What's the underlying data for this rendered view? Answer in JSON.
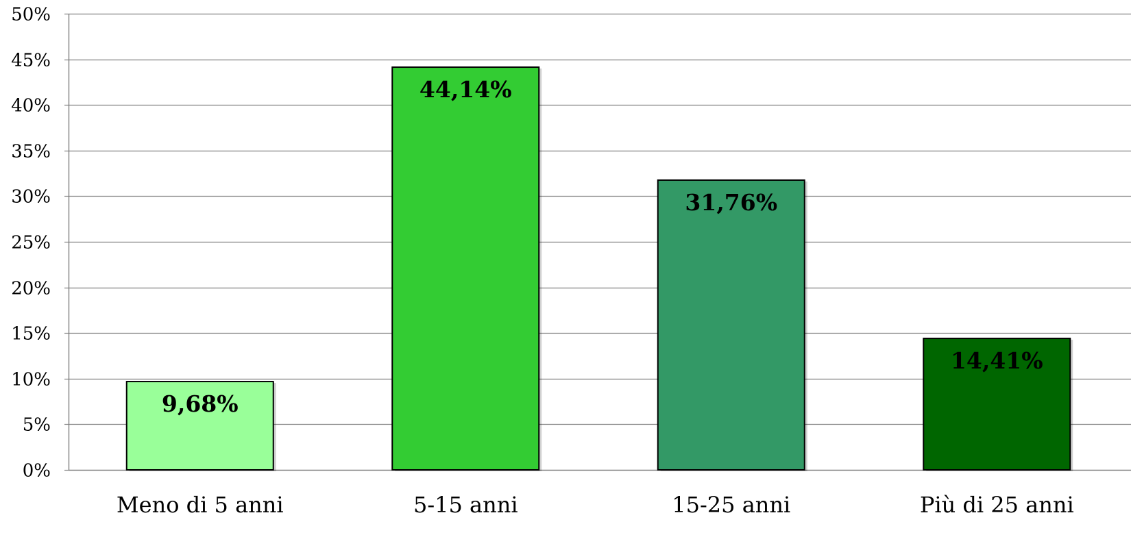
{
  "chart_data": {
    "type": "bar",
    "categories": [
      "Meno di 5 anni",
      "5-15 anni",
      "15-25 anni",
      "Più di 25 anni"
    ],
    "values": [
      9.68,
      44.14,
      31.76,
      14.41
    ],
    "data_labels": [
      "9,68%",
      "44,14%",
      "31,76%",
      "14,41%"
    ],
    "bar_colors": [
      "#99ff99",
      "#33cc33",
      "#339966",
      "#006600"
    ],
    "ylim": [
      0,
      50
    ],
    "yticks": [
      0,
      5,
      10,
      15,
      20,
      25,
      30,
      35,
      40,
      45,
      50
    ],
    "ytick_labels": [
      "0%",
      "5%",
      "10%",
      "15%",
      "20%",
      "25%",
      "30%",
      "35%",
      "40%",
      "45%",
      "50%"
    ],
    "grid": true,
    "legend": "none",
    "title": "",
    "xlabel": "",
    "ylabel": ""
  }
}
